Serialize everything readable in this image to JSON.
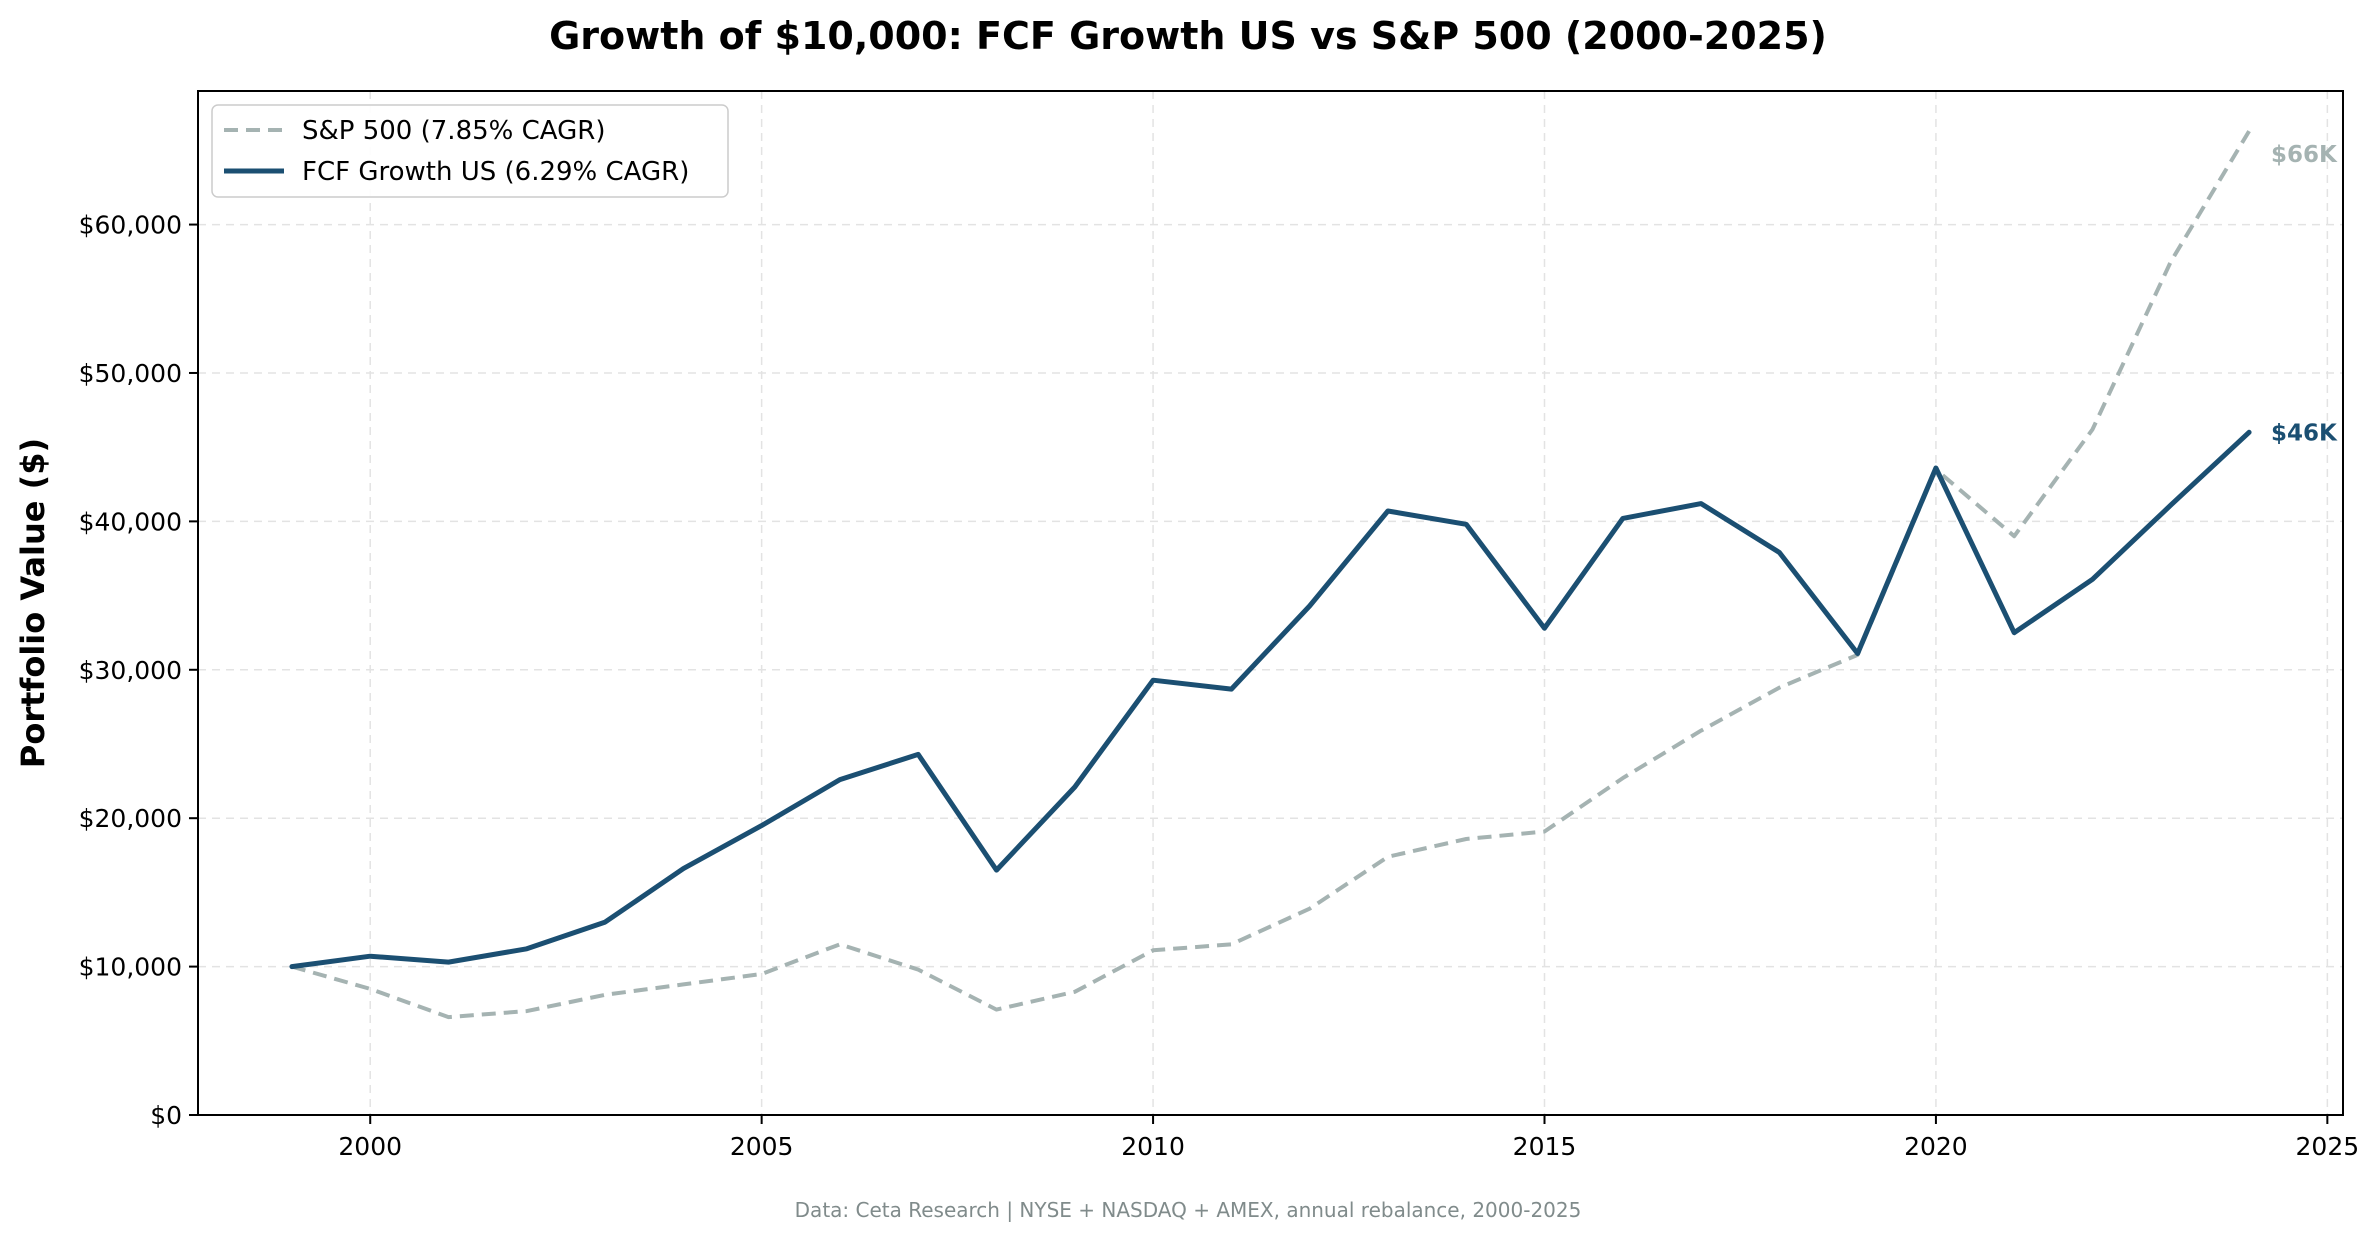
{
  "chart_data": {
    "type": "line",
    "title": "Growth of $10,000: FCF Growth US vs S&P 500 (2000-2025)",
    "xlabel": "",
    "ylabel": "Portfolio Value ($)",
    "source_note": "Data: Ceta Research | NYSE + NASDAQ + AMEX, annual rebalance, 2000-2025",
    "xlim": [
      1997.8,
      2025.2
    ],
    "ylim": [
      0,
      69000
    ],
    "x_ticks": [
      2000,
      2005,
      2010,
      2015,
      2020,
      2025
    ],
    "y_ticks": [
      0,
      10000,
      20000,
      30000,
      40000,
      50000,
      60000
    ],
    "y_tick_labels": [
      "$0",
      "$10,000",
      "$20,000",
      "$30,000",
      "$40,000",
      "$50,000",
      "$60,000"
    ],
    "grid": true,
    "legend_position": "top-left",
    "x": [
      1999,
      2000,
      2001,
      2002,
      2003,
      2004,
      2005,
      2006,
      2007,
      2008,
      2009,
      2010,
      2011,
      2012,
      2013,
      2014,
      2015,
      2016,
      2017,
      2018,
      2019,
      2020,
      2021,
      2022,
      2023,
      2024
    ],
    "series": [
      {
        "name": "S&P 500 (7.85% CAGR)",
        "color": "#a5b3b2",
        "style": "dashed",
        "end_label": "$66K",
        "values": [
          10000,
          8500,
          6600,
          7000,
          8100,
          8800,
          9500,
          11500,
          9800,
          7100,
          8300,
          11100,
          11500,
          13900,
          17400,
          18600,
          19100,
          22700,
          25900,
          28800,
          31000,
          43500,
          39000,
          46200,
          57500,
          66300
        ]
      },
      {
        "name": "FCF Growth US (6.29% CAGR)",
        "color": "#1b4f72",
        "style": "solid",
        "end_label": "$46K",
        "values": [
          10000,
          10700,
          10300,
          11200,
          13000,
          16600,
          19500,
          22600,
          24300,
          16500,
          22100,
          29300,
          28700,
          34300,
          40700,
          39800,
          32800,
          40200,
          41200,
          37900,
          31100,
          43600,
          32500,
          36100,
          41100,
          46000
        ]
      }
    ]
  }
}
